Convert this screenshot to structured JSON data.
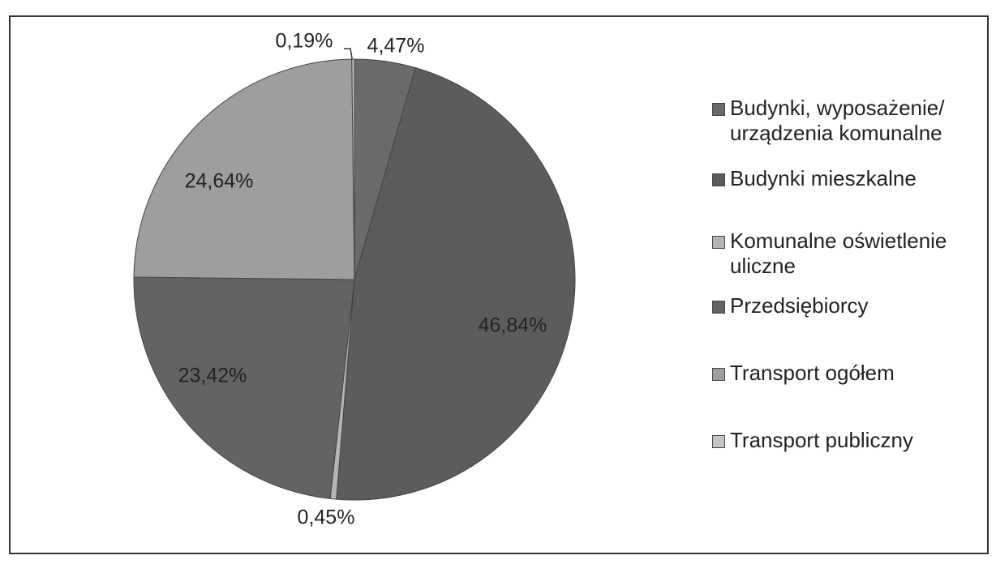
{
  "chart_data": {
    "type": "pie",
    "categories": [
      "Budynki, wyposażenie/ urządzenia komunalne",
      "Budynki mieszkalne",
      "Komunalne oświetlenie uliczne",
      "Przedsiębiorcy",
      "Transport ogółem",
      "Transport publiczny"
    ],
    "values": [
      4.47,
      46.84,
      0.45,
      23.42,
      24.64,
      0.19
    ],
    "value_labels": [
      "4,47%",
      "46,84%",
      "0,45%",
      "23,42%",
      "24,64%",
      "0,19%"
    ],
    "colors": [
      "#6a6a6a",
      "#5c5c5c",
      "#b4b4b4",
      "#636363",
      "#9e9e9e",
      "#c4c4c4"
    ],
    "legend": "right"
  }
}
